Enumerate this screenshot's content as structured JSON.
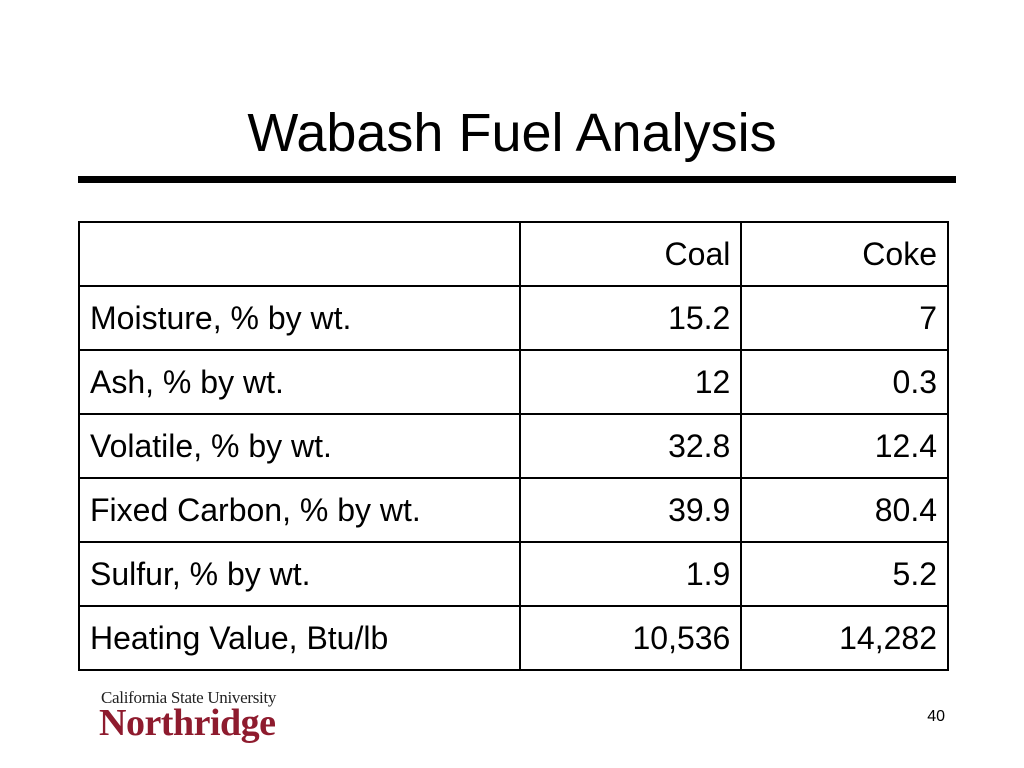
{
  "header": {
    "title": "Wabash Fuel Analysis"
  },
  "table": {
    "columns": [
      "Coal",
      "Coke"
    ],
    "rows": [
      [
        "Moisture, % by wt.",
        "15.2",
        "7"
      ],
      [
        "Ash, % by wt.",
        "12",
        "0.3"
      ],
      [
        "Volatile, % by wt.",
        "32.8",
        "12.4"
      ],
      [
        "Fixed Carbon, % by wt.",
        "39.9",
        "80.4"
      ],
      [
        "Sulfur, % by wt.",
        "1.9",
        "5.2"
      ],
      [
        "Heating Value, Btu/lb",
        "10,536",
        "14,282"
      ]
    ]
  },
  "footer": {
    "logo_line1": "California State University",
    "logo_line2": "Northridge",
    "page_number": "40"
  }
}
